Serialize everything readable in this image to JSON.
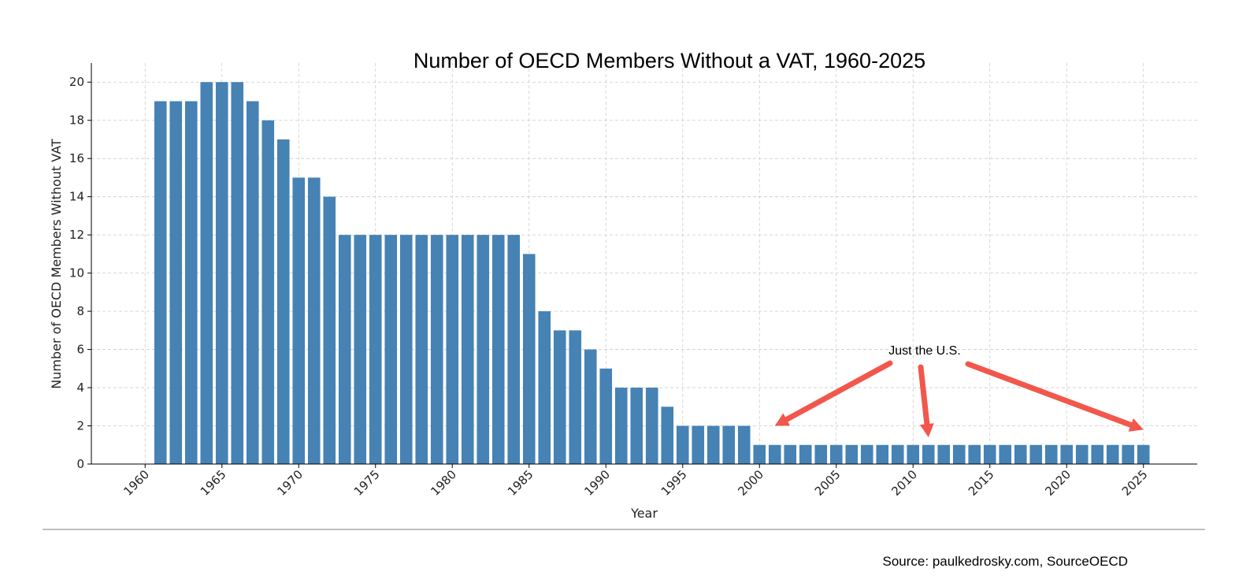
{
  "chart_data": {
    "type": "bar",
    "title": "Number of OECD Members Without a VAT, 1960-2025",
    "xlabel": "Year",
    "ylabel": "Number of OECD Members Without VAT",
    "x": [
      1961,
      1962,
      1963,
      1964,
      1965,
      1966,
      1967,
      1968,
      1969,
      1970,
      1971,
      1972,
      1973,
      1974,
      1975,
      1976,
      1977,
      1978,
      1979,
      1980,
      1981,
      1982,
      1983,
      1984,
      1985,
      1986,
      1987,
      1988,
      1989,
      1990,
      1991,
      1992,
      1993,
      1994,
      1995,
      1996,
      1997,
      1998,
      1999,
      2000,
      2001,
      2002,
      2003,
      2004,
      2005,
      2006,
      2007,
      2008,
      2009,
      2010,
      2011,
      2012,
      2013,
      2014,
      2015,
      2016,
      2017,
      2018,
      2019,
      2020,
      2021,
      2022,
      2023,
      2024,
      2025
    ],
    "values": [
      19,
      19,
      19,
      20,
      20,
      20,
      19,
      18,
      17,
      15,
      15,
      14,
      12,
      12,
      12,
      12,
      12,
      12,
      12,
      12,
      12,
      12,
      12,
      12,
      11,
      8,
      7,
      7,
      6,
      5,
      4,
      4,
      4,
      3,
      2,
      2,
      2,
      2,
      2,
      1,
      1,
      1,
      1,
      1,
      1,
      1,
      1,
      1,
      1,
      1,
      1,
      1,
      1,
      1,
      1,
      1,
      1,
      1,
      1,
      1,
      1,
      1,
      1,
      1,
      1
    ],
    "xlim": [
      1956.5,
      2028.5
    ],
    "ylim": [
      0,
      21
    ],
    "xticks": [
      1960,
      1965,
      1970,
      1975,
      1980,
      1985,
      1990,
      1995,
      2000,
      2005,
      2010,
      2015,
      2020,
      2025
    ],
    "yticks": [
      0,
      2,
      4,
      6,
      8,
      10,
      12,
      14,
      16,
      18,
      20
    ],
    "grid": true,
    "bar_color": "#4682b4",
    "annotation": {
      "text": "Just the U.S.",
      "arrow_color": "#f2574c",
      "arrow_targets": [
        {
          "x": 2001,
          "y": 2.0
        },
        {
          "x": 2011,
          "y": 1.4
        },
        {
          "x": 2025,
          "y": 1.8
        }
      ]
    }
  },
  "source": "Source: paulkedrosky.com, SourceOECD"
}
